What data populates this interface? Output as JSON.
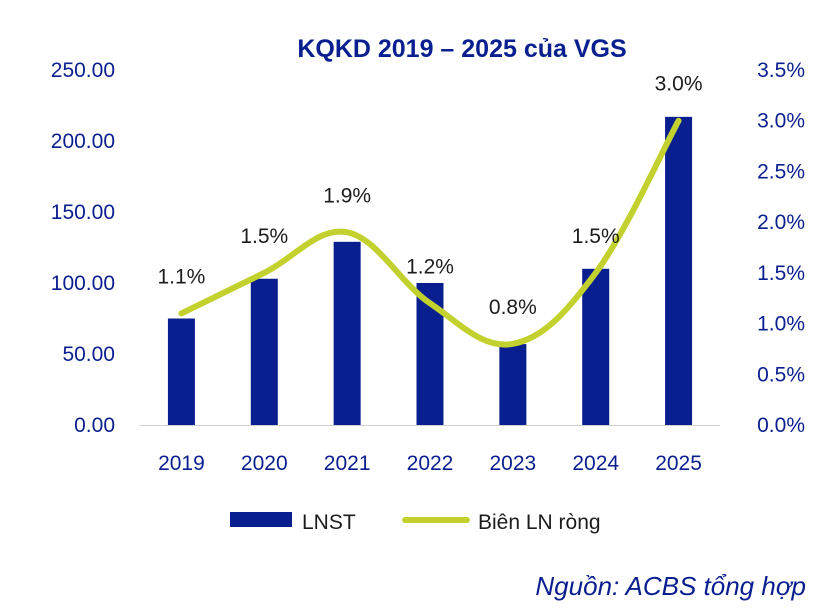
{
  "chart_data": {
    "type": "bar",
    "title": "KQKD 2019 – 2025 của VGS",
    "categories": [
      "2019",
      "2020",
      "2021",
      "2022",
      "2023",
      "2024",
      "2025"
    ],
    "series": [
      {
        "name": "LNST",
        "type": "bar",
        "axis": "left",
        "values": [
          75,
          103,
          129,
          100,
          57,
          110,
          217
        ],
        "color": "#0a1f8f"
      },
      {
        "name": "Biên LN ròng",
        "type": "line",
        "axis": "right",
        "values": [
          1.1,
          1.5,
          1.9,
          1.2,
          0.8,
          1.5,
          3.0
        ],
        "labels": [
          "1.1%",
          "1.5%",
          "1.9%",
          "1.2%",
          "0.8%",
          "1.5%",
          "3.0%"
        ],
        "color": "#c3d12f"
      }
    ],
    "y_left": {
      "min": 0,
      "max": 250,
      "ticks": [
        "0.00",
        "50.00",
        "100.00",
        "150.00",
        "200.00",
        "250.00"
      ]
    },
    "y_right": {
      "min": 0,
      "max": 3.5,
      "ticks": [
        "0.0%",
        "0.5%",
        "1.0%",
        "1.5%",
        "2.0%",
        "2.5%",
        "3.0%",
        "3.5%"
      ]
    },
    "grid": false,
    "legend_position": "bottom"
  },
  "source_note": "Nguồn: ACBS tổng hợp"
}
